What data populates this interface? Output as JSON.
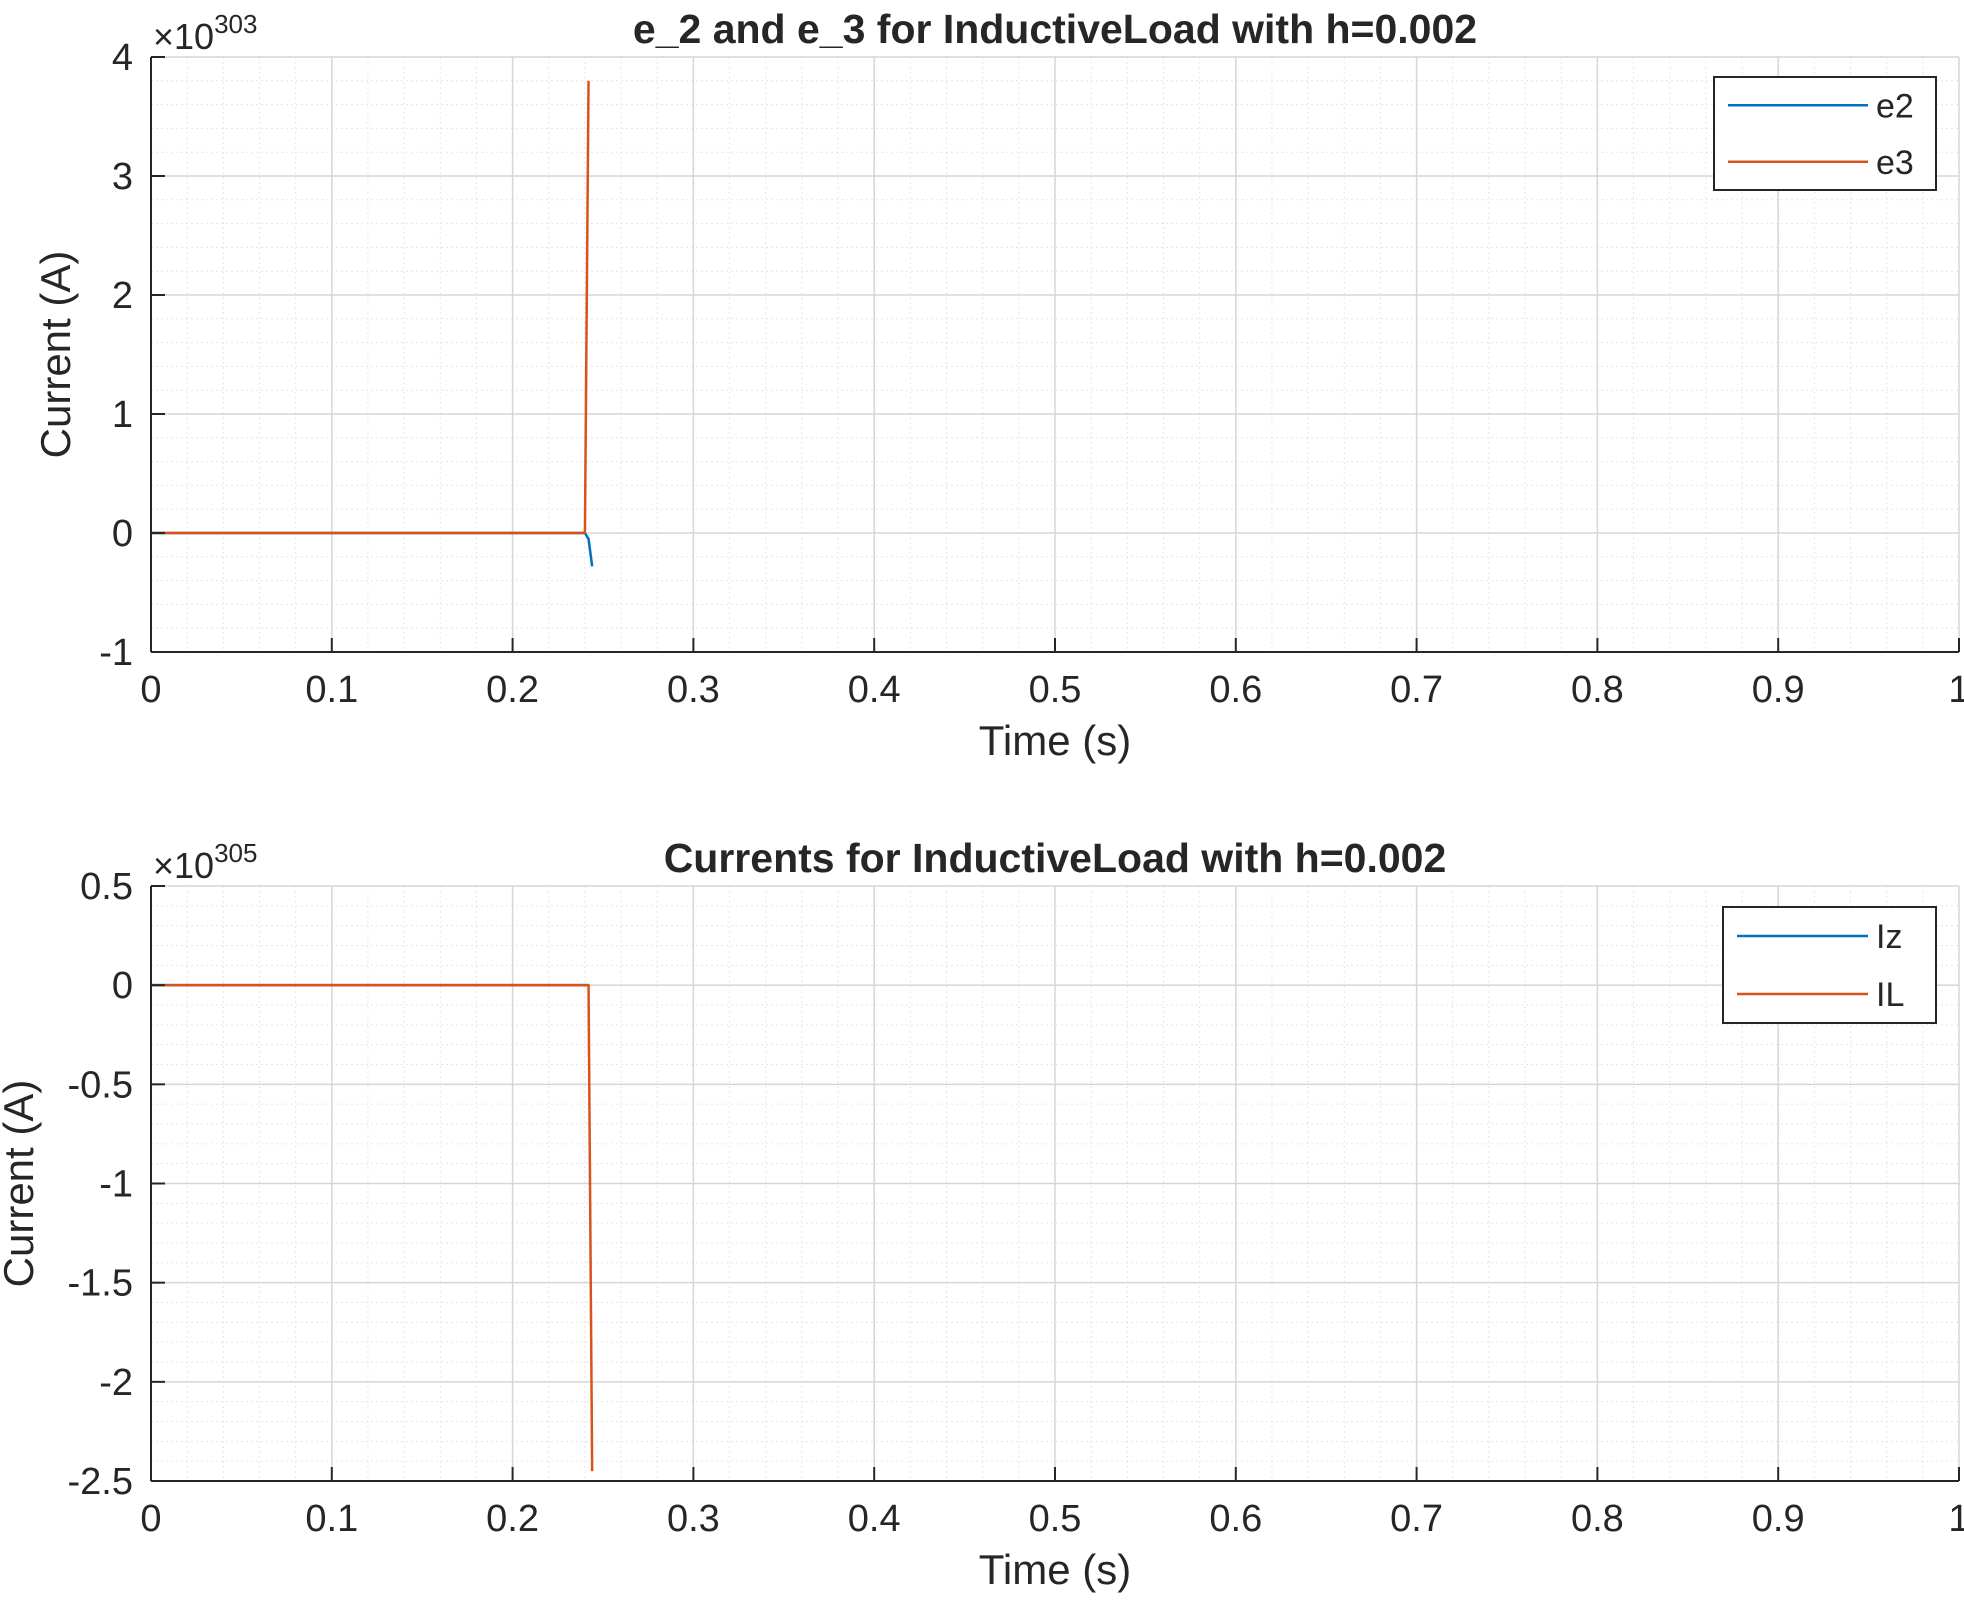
{
  "chart_data": [
    {
      "type": "line",
      "title": "e_2 and e_3 for InductiveLoad with h=0.002",
      "xlabel": "Time (s)",
      "ylabel": "Current (A)",
      "xlim": [
        0,
        1
      ],
      "ylim": [
        -1,
        4
      ],
      "y_multiplier_base": "×10",
      "y_multiplier_exp": "303",
      "xticks": [
        0,
        0.1,
        0.2,
        0.3,
        0.4,
        0.5,
        0.6,
        0.7,
        0.8,
        0.9,
        1
      ],
      "xtick_labels": [
        "0",
        "0.1",
        "0.2",
        "0.3",
        "0.4",
        "0.5",
        "0.6",
        "0.7",
        "0.8",
        "0.9",
        "1"
      ],
      "yticks": [
        -1,
        0,
        1,
        2,
        3,
        4
      ],
      "ytick_labels": [
        "-1",
        "0",
        "1",
        "2",
        "3",
        "4"
      ],
      "grid": true,
      "minor_grid": true,
      "legend_position": "top-right",
      "series": [
        {
          "name": "e2",
          "color": "#0072BD",
          "x": [
            0,
            0.238,
            0.24,
            0.242,
            0.244
          ],
          "y": [
            0,
            0,
            0,
            -0.05,
            -0.28
          ]
        },
        {
          "name": "e3",
          "color": "#D95319",
          "x": [
            0,
            0.238,
            0.24,
            0.242
          ],
          "y": [
            0,
            0,
            0,
            3.8
          ]
        }
      ]
    },
    {
      "type": "line",
      "title": "Currents for InductiveLoad with h=0.002",
      "xlabel": "Time (s)",
      "ylabel": "Current (A)",
      "xlim": [
        0,
        1
      ],
      "ylim": [
        -2.5,
        0.5
      ],
      "y_multiplier_base": "×10",
      "y_multiplier_exp": "305",
      "xticks": [
        0,
        0.1,
        0.2,
        0.3,
        0.4,
        0.5,
        0.6,
        0.7,
        0.8,
        0.9,
        1
      ],
      "xtick_labels": [
        "0",
        "0.1",
        "0.2",
        "0.3",
        "0.4",
        "0.5",
        "0.6",
        "0.7",
        "0.8",
        "0.9",
        "1"
      ],
      "yticks": [
        -2.5,
        -2,
        -1.5,
        -1,
        -0.5,
        0,
        0.5
      ],
      "ytick_labels": [
        "-2.5",
        "-2",
        "-1.5",
        "-1",
        "-0.5",
        "0",
        "0.5"
      ],
      "grid": true,
      "minor_grid": true,
      "legend_position": "top-right",
      "series": [
        {
          "name": "Iz",
          "color": "#0072BD",
          "x": [
            0,
            0.24,
            0.242
          ],
          "y": [
            0,
            0,
            0
          ]
        },
        {
          "name": "IL",
          "color": "#D95319",
          "x": [
            0,
            0.24,
            0.242,
            0.244
          ],
          "y": [
            0,
            0,
            0,
            -2.45
          ]
        }
      ]
    }
  ]
}
